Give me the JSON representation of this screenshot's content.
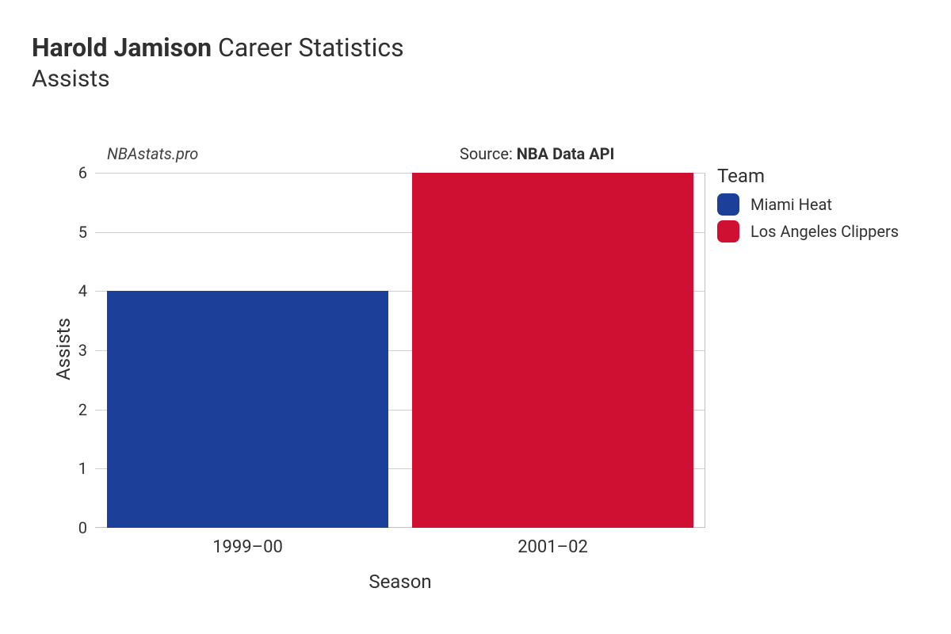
{
  "title": {
    "bold": "Harold Jamison",
    "rest": " Career Statistics"
  },
  "subtitle": "Assists",
  "watermark": "NBAstats.pro",
  "source": {
    "prefix": "Source: ",
    "name": "NBA Data API"
  },
  "chart": {
    "type": "bar",
    "xlabel": "Season",
    "ylabel": "Assists",
    "ylim": [
      0,
      6
    ],
    "yticks": [
      0,
      1,
      2,
      3,
      4,
      5,
      6
    ],
    "grid_color": "#d0d0d0",
    "axis_color": "#bfbfbf",
    "background_color": "#ffffff",
    "bar_width_ratio": 0.92,
    "title_fontsize": 32,
    "subtitle_fontsize": 30,
    "axis_title_fontsize": 24,
    "tick_fontsize": 20,
    "categories": [
      "1999–00",
      "2001–02"
    ],
    "values": [
      4,
      6
    ],
    "bar_colors": [
      "#1c3f99",
      "#cf1033"
    ],
    "series_teams": [
      "Miami Heat",
      "Los Angeles Clippers"
    ]
  },
  "legend": {
    "title": "Team",
    "items": [
      {
        "label": "Miami Heat",
        "color": "#1c3f99"
      },
      {
        "label": "Los Angeles Clippers",
        "color": "#cf1033"
      }
    ]
  }
}
